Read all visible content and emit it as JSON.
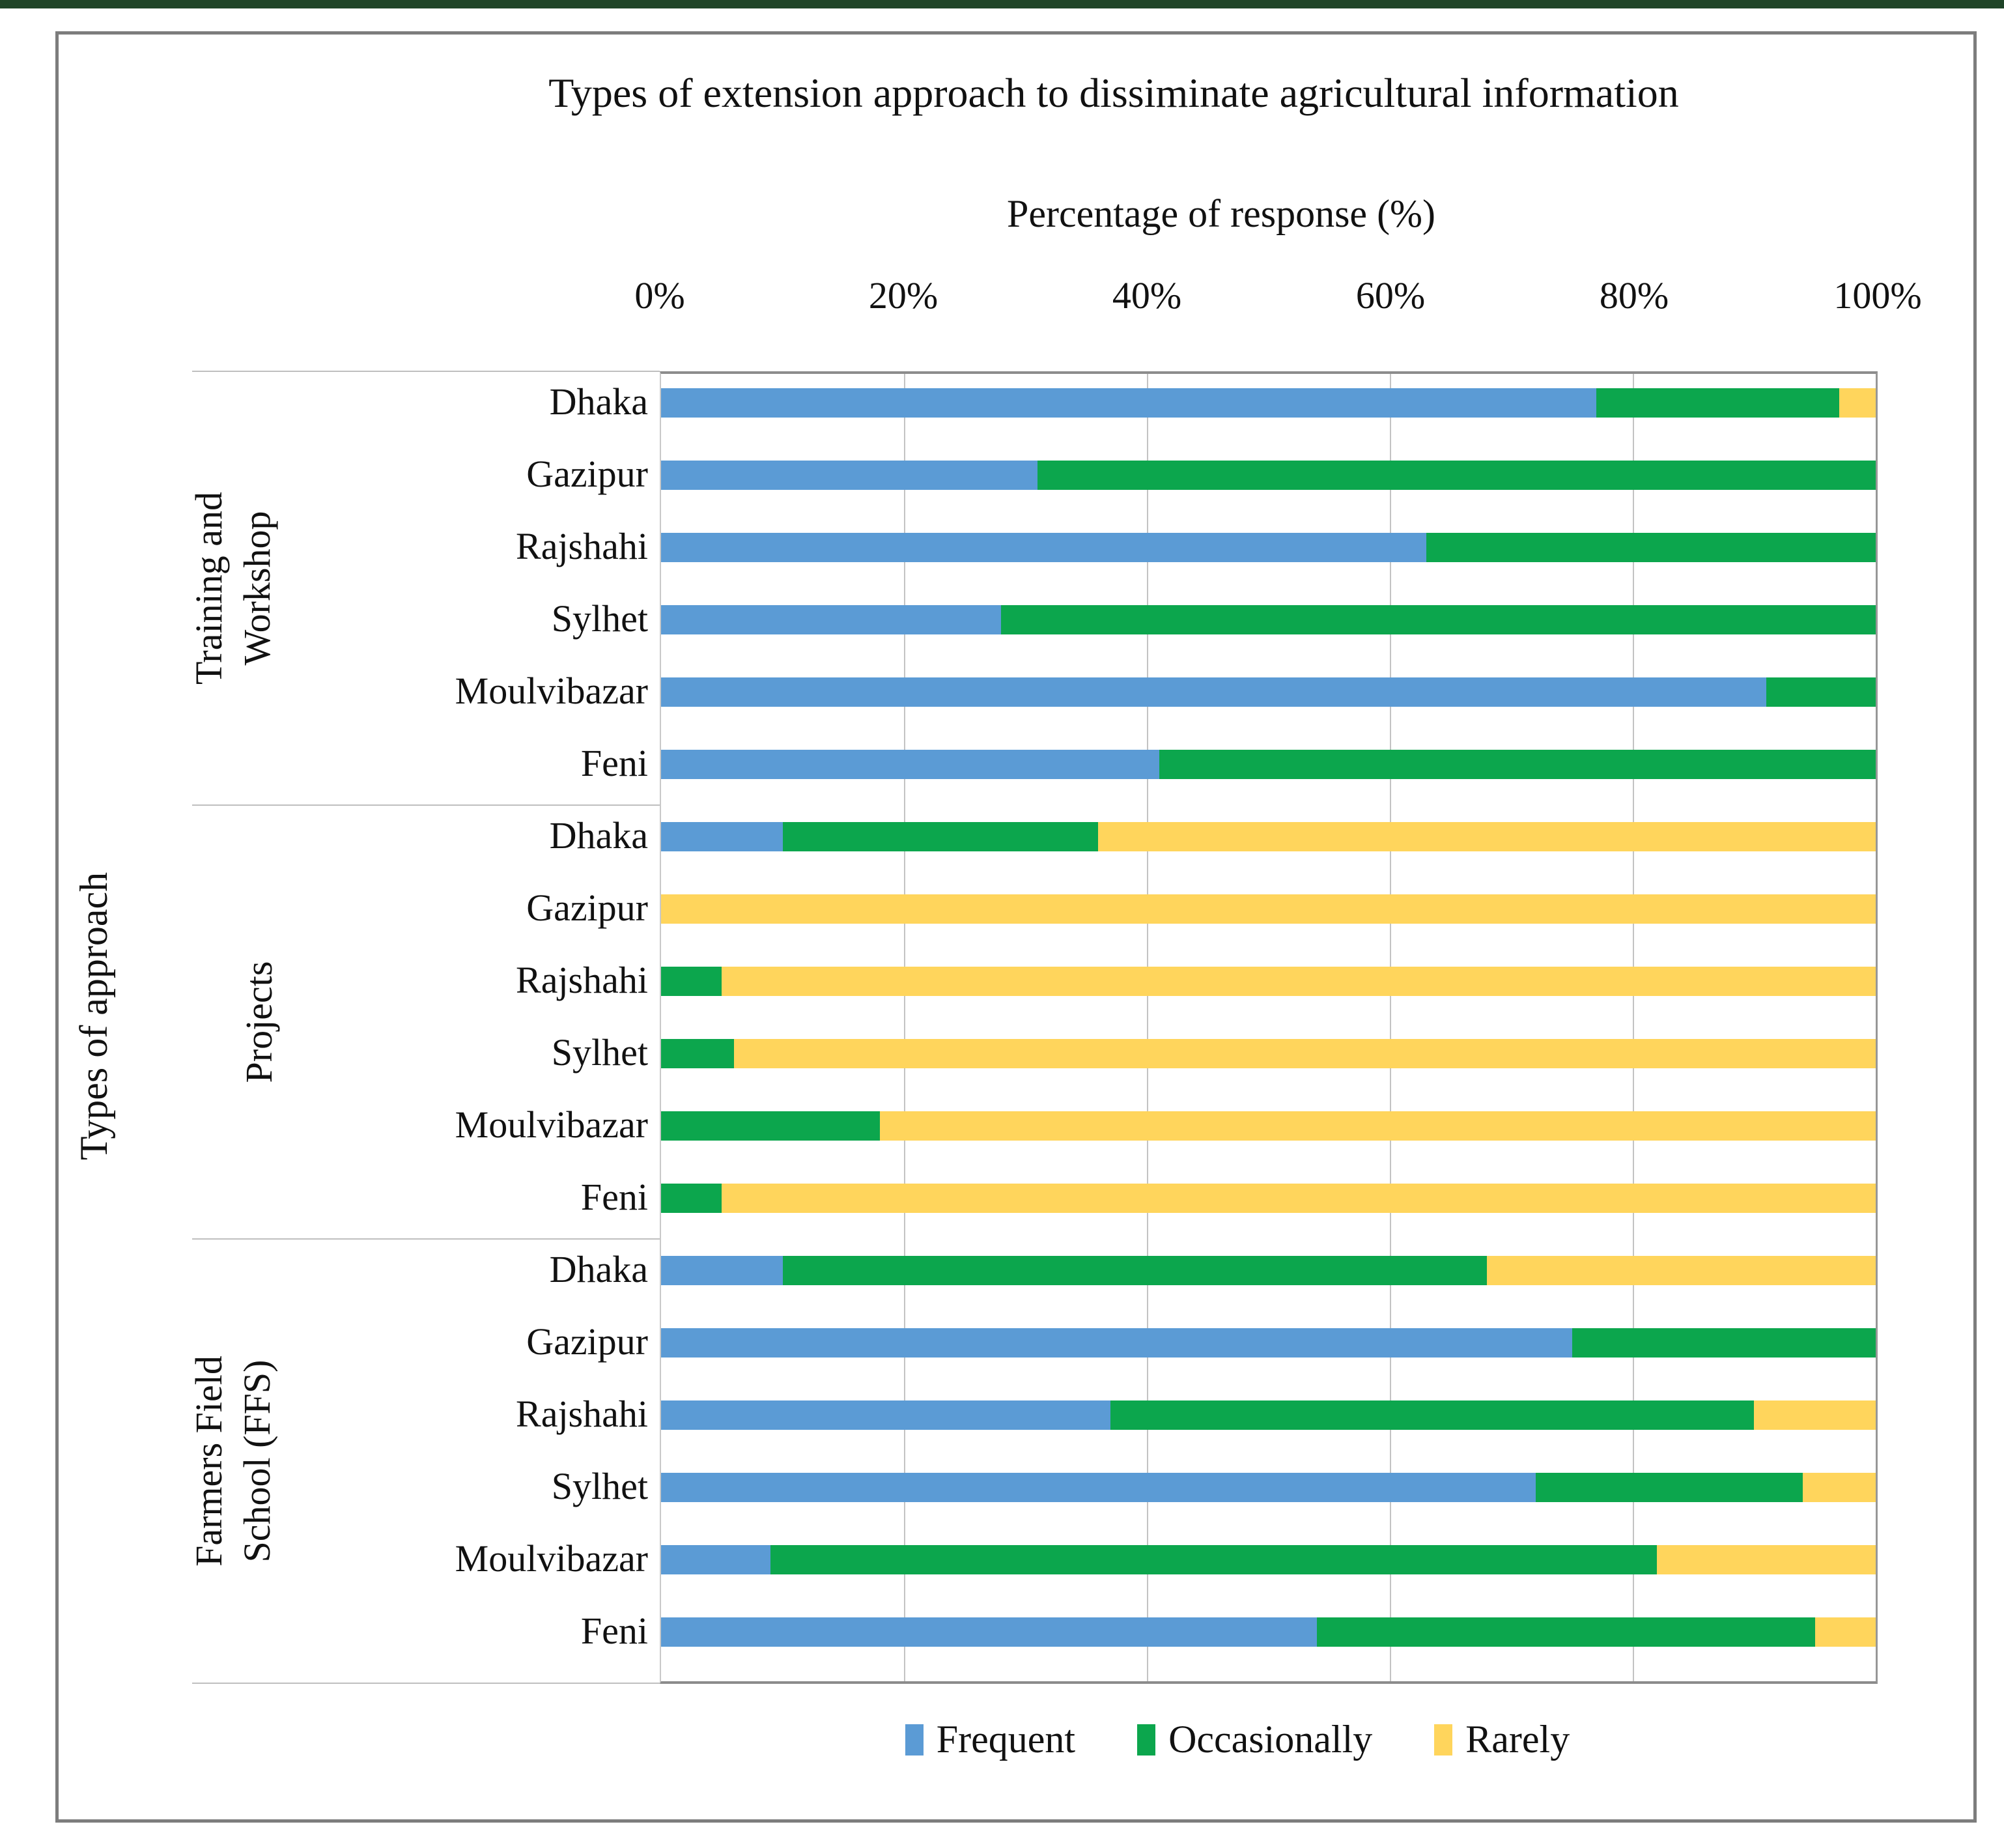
{
  "chart_data": {
    "type": "bar",
    "stacked": true,
    "orientation": "horizontal",
    "title": "Types of extension approach to dissiminate  agricultural  information",
    "xlabel": "Percentage of response (%)",
    "ylabel": "Types of approach",
    "xlim": [
      0,
      100
    ],
    "x_ticks": [
      "0%",
      "20%",
      "40%",
      "60%",
      "80%",
      "100%"
    ],
    "grid": true,
    "legend_position": "bottom",
    "legend": [
      "Frequent",
      "Occasionally",
      "Rarely"
    ],
    "colors": {
      "Frequent": "#5B9BD5",
      "Occasionally": "#0CA64D",
      "Rarely": "#FFD55C"
    },
    "groups": [
      {
        "label": "Training and Workshop",
        "label_lines": [
          "Training and",
          "Workshop"
        ],
        "categories": [
          "Dhaka",
          "Gazipur",
          "Rajshahi",
          "Sylhet",
          "Moulvibazar",
          "Feni"
        ],
        "series": {
          "Frequent": [
            77,
            31,
            63,
            28,
            91,
            41
          ],
          "Occasionally": [
            20,
            69,
            37,
            72,
            9,
            59
          ],
          "Rarely": [
            3,
            0,
            0,
            0,
            0,
            0
          ]
        }
      },
      {
        "label": "Projects",
        "label_lines": [
          "Projects"
        ],
        "categories": [
          "Dhaka",
          "Gazipur",
          "Rajshahi",
          "Sylhet",
          "Moulvibazar",
          "Feni"
        ],
        "series": {
          "Frequent": [
            10,
            0,
            0,
            0,
            0,
            0
          ],
          "Occasionally": [
            26,
            0,
            5,
            6,
            18,
            5
          ],
          "Rarely": [
            64,
            100,
            95,
            94,
            82,
            95
          ]
        }
      },
      {
        "label": "Farmers Field School (FFS)",
        "label_lines": [
          "Farmers Field",
          "School (FFS)"
        ],
        "categories": [
          "Dhaka",
          "Gazipur",
          "Rajshahi",
          "Sylhet",
          "Moulvibazar",
          "Feni"
        ],
        "series": {
          "Frequent": [
            10,
            75,
            37,
            72,
            9,
            54
          ],
          "Occasionally": [
            58,
            25,
            53,
            22,
            73,
            41
          ],
          "Rarely": [
            32,
            0,
            10,
            6,
            18,
            5
          ]
        }
      }
    ]
  }
}
